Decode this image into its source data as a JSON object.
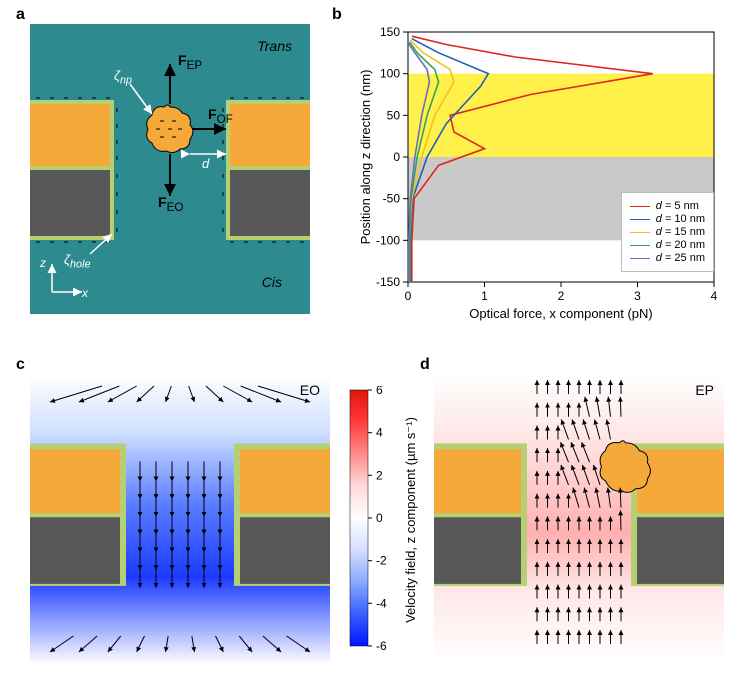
{
  "labels": {
    "a": "a",
    "b": "b",
    "c": "c",
    "d": "d"
  },
  "panel_a": {
    "bg": "#2d8a8f",
    "gold": "#f4a93a",
    "gray": "#585858",
    "outline": "#b6cf72",
    "forces": {
      "up": "F",
      "up_sub": "EP",
      "down": "F",
      "down_sub": "EO",
      "right": "F",
      "right_sub": "OF"
    },
    "zeta_np": "ζ",
    "zeta_np_sub": "np",
    "zeta_hole": "ζ",
    "zeta_hole_sub": "hole",
    "dist": "d",
    "side_trans": "Trans",
    "side_cis": "Cis",
    "axes": {
      "z": "z",
      "x": "x"
    }
  },
  "panel_b": {
    "xlabel": "Optical force, x component (pN)",
    "ylabel": "Position along z direction (nm)",
    "xlim": [
      0,
      4
    ],
    "ylim": [
      -150,
      150
    ],
    "xticks": [
      0,
      1,
      2,
      3,
      4
    ],
    "yticks": [
      -150,
      -100,
      -50,
      0,
      50,
      100,
      150
    ],
    "band_yellow": [
      0,
      100
    ],
    "band_gray": [
      -100,
      0
    ],
    "band_yellow_color": "#fff14a",
    "band_gray_color": "#c9c9c9",
    "series": [
      {
        "label": "d = 5 nm",
        "color": "#e1261c",
        "pts": [
          [
            0.05,
            -150
          ],
          [
            0.05,
            -100
          ],
          [
            0.08,
            -50
          ],
          [
            0.4,
            -10
          ],
          [
            1.0,
            10
          ],
          [
            0.6,
            30
          ],
          [
            0.55,
            50
          ],
          [
            1.6,
            75
          ],
          [
            3.2,
            100
          ],
          [
            1.4,
            120
          ],
          [
            0.5,
            135
          ],
          [
            0.05,
            145
          ]
        ]
      },
      {
        "label": "d = 10 nm",
        "color": "#1f5fbf",
        "pts": [
          [
            0.03,
            -150
          ],
          [
            0.03,
            -100
          ],
          [
            0.06,
            -50
          ],
          [
            0.25,
            0
          ],
          [
            0.5,
            40
          ],
          [
            0.95,
            85
          ],
          [
            1.05,
            100
          ],
          [
            0.4,
            125
          ],
          [
            0.05,
            142
          ]
        ]
      },
      {
        "label": "d = 15 nm",
        "color": "#f2c21a",
        "pts": [
          [
            0.02,
            -150
          ],
          [
            0.02,
            -100
          ],
          [
            0.05,
            -50
          ],
          [
            0.18,
            0
          ],
          [
            0.35,
            50
          ],
          [
            0.6,
            90
          ],
          [
            0.55,
            105
          ],
          [
            0.2,
            125
          ],
          [
            0.03,
            140
          ]
        ]
      },
      {
        "label": "d = 20 nm",
        "color": "#2fa84f",
        "pts": [
          [
            0.02,
            -150
          ],
          [
            0.02,
            -100
          ],
          [
            0.04,
            -50
          ],
          [
            0.12,
            0
          ],
          [
            0.25,
            50
          ],
          [
            0.4,
            90
          ],
          [
            0.35,
            105
          ],
          [
            0.12,
            125
          ],
          [
            0.02,
            138
          ]
        ]
      },
      {
        "label": "d = 25 nm",
        "color": "#6a6fbf",
        "pts": [
          [
            0.01,
            -150
          ],
          [
            0.01,
            -100
          ],
          [
            0.03,
            -50
          ],
          [
            0.09,
            0
          ],
          [
            0.18,
            50
          ],
          [
            0.28,
            90
          ],
          [
            0.25,
            105
          ],
          [
            0.09,
            125
          ],
          [
            0.01,
            136
          ]
        ]
      }
    ],
    "legend_title_italic": "d"
  },
  "panel_cd": {
    "colorbar_label": "Velocity field, z component (µm s⁻¹)",
    "colorbar_ticks": [
      -6,
      -4,
      -2,
      0,
      2,
      4,
      6
    ],
    "colorbar_colors": [
      "#0016ff",
      "#3a63ff",
      "#8aa8ff",
      "#d6e0ff",
      "#ffffff",
      "#ffd6d6",
      "#ff8a8a",
      "#ff3a3a",
      "#e0140a"
    ],
    "eo_label": "EO",
    "ep_label": "EP",
    "gold": "#f4a93a",
    "gray": "#585858",
    "outline": "#b6cf72"
  }
}
